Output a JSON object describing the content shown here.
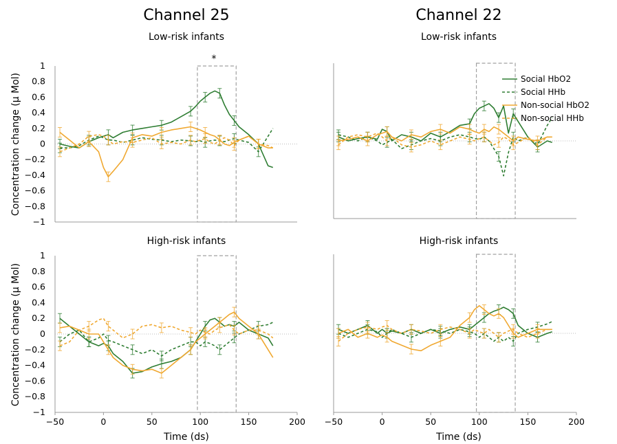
{
  "figure": {
    "ylabel": "Concentration change (μ Mol)",
    "xlabel": "Time (ds)",
    "columns": [
      "Channel 25",
      "Channel 22"
    ],
    "x_ticks": [
      "−50",
      "0",
      "50",
      "100",
      "150",
      "200"
    ],
    "y_ticks": [
      "1",
      "0.8",
      "0.6",
      "0.4",
      "0.2",
      "0",
      "−0.2",
      "−0.4",
      "−0.6",
      "−0.8",
      "−1"
    ],
    "significance_marker": "*",
    "colors": {
      "hbo2_social": "#2e7d32",
      "hhb_social": "#2e7d32",
      "hbo2_nonsocial": "#f0a830",
      "hhb_nonsocial": "#f0a830",
      "window": "#a0a0a0"
    }
  },
  "chart_data": [
    {
      "type": "line",
      "panel": "top-left",
      "channel": "Channel 25",
      "title": "Low-risk infants",
      "xlim": [
        -50,
        200
      ],
      "ylim": [
        -1,
        1
      ],
      "highlight_window": [
        97,
        137
      ],
      "significance": "*",
      "legend": {
        "placement": "top-right",
        "entries": [
          "Social HbO2",
          "Social HHb",
          "Non-social HbO2",
          "Non-social HHb"
        ]
      },
      "x": [
        -45,
        -35,
        -25,
        -15,
        -5,
        0,
        5,
        10,
        20,
        30,
        40,
        50,
        60,
        70,
        80,
        90,
        95,
        100,
        105,
        110,
        115,
        120,
        125,
        130,
        135,
        140,
        150,
        160,
        170,
        175
      ],
      "series": [
        {
          "name": "Social HbO2",
          "style": "solid",
          "values": [
            0.0,
            -0.03,
            -0.05,
            0.03,
            0.08,
            0.1,
            0.12,
            0.08,
            0.15,
            0.18,
            0.2,
            0.22,
            0.24,
            0.28,
            0.35,
            0.42,
            0.48,
            0.55,
            0.6,
            0.65,
            0.68,
            0.65,
            0.5,
            0.38,
            0.3,
            0.22,
            0.12,
            0.0,
            -0.28,
            -0.3
          ]
        },
        {
          "name": "Social HHb",
          "style": "dashed",
          "values": [
            -0.05,
            -0.05,
            -0.02,
            0.05,
            0.1,
            0.08,
            0.05,
            0.05,
            0.02,
            0.05,
            0.08,
            0.06,
            0.05,
            0.03,
            0.05,
            0.04,
            0.03,
            0.04,
            0.02,
            0.04,
            0.05,
            0.04,
            0.03,
            0.05,
            0.07,
            0.05,
            0.02,
            -0.1,
            0.1,
            0.2
          ]
        },
        {
          "name": "Non-social HbO2",
          "style": "solid",
          "values": [
            0.15,
            0.05,
            -0.05,
            0.03,
            -0.1,
            -0.3,
            -0.42,
            -0.35,
            -0.2,
            0.08,
            0.12,
            0.1,
            0.15,
            0.18,
            0.2,
            0.22,
            0.2,
            0.18,
            0.15,
            0.12,
            0.1,
            0.05,
            0.0,
            -0.02,
            0.02,
            0.05,
            0.1,
            0.0,
            -0.05,
            -0.05
          ]
        },
        {
          "name": "Non-social HHb",
          "style": "dashed",
          "values": [
            -0.1,
            -0.05,
            0.0,
            0.1,
            0.12,
            0.1,
            0.05,
            0.0,
            0.03,
            0.02,
            0.05,
            0.08,
            0.0,
            0.02,
            0.0,
            0.05,
            0.03,
            0.05,
            0.07,
            0.02,
            0.0,
            0.05,
            0.08,
            0.05,
            -0.02,
            0.05,
            0.1,
            0.0,
            -0.02,
            -0.05
          ]
        }
      ]
    },
    {
      "type": "line",
      "panel": "top-right",
      "channel": "Channel 22",
      "title": "Low-risk infants",
      "xlim": [
        -50,
        200
      ],
      "ylim": [
        -1,
        1
      ],
      "highlight_window": [
        97,
        137
      ],
      "x": [
        -45,
        -35,
        -25,
        -15,
        -5,
        0,
        5,
        10,
        20,
        30,
        40,
        50,
        60,
        70,
        80,
        90,
        95,
        100,
        105,
        110,
        115,
        120,
        125,
        130,
        135,
        140,
        150,
        160,
        170,
        175
      ],
      "series": [
        {
          "name": "Social HbO2",
          "style": "solid",
          "values": [
            0.05,
            0.0,
            0.03,
            0.05,
            0.02,
            0.15,
            0.12,
            0.0,
            0.08,
            0.05,
            0.0,
            0.1,
            0.05,
            0.12,
            0.2,
            0.22,
            0.35,
            0.42,
            0.45,
            0.48,
            0.42,
            0.3,
            0.45,
            0.1,
            0.35,
            0.25,
            0.05,
            -0.08,
            0.0,
            -0.02
          ]
        },
        {
          "name": "Social HHb",
          "style": "dashed",
          "values": [
            0.08,
            0.05,
            0.0,
            0.05,
            0.0,
            -0.05,
            -0.02,
            0.02,
            -0.1,
            -0.05,
            0.0,
            0.03,
            0.0,
            0.05,
            0.08,
            0.05,
            0.03,
            0.02,
            0.05,
            0.0,
            -0.1,
            -0.2,
            -0.45,
            -0.15,
            0.05,
            0.0,
            0.05,
            -0.05,
            0.2,
            0.3
          ]
        },
        {
          "name": "Non-social HbO2",
          "style": "solid",
          "values": [
            0.0,
            0.02,
            0.05,
            0.0,
            0.08,
            0.1,
            0.12,
            0.05,
            0.0,
            0.08,
            0.05,
            0.12,
            0.15,
            0.1,
            0.18,
            0.15,
            0.12,
            0.1,
            0.15,
            0.12,
            0.18,
            0.15,
            0.1,
            0.05,
            0.0,
            0.05,
            0.02,
            0.0,
            0.05,
            0.05
          ]
        },
        {
          "name": "Non-social HHb",
          "style": "dashed",
          "values": [
            -0.05,
            0.05,
            0.08,
            0.05,
            0.1,
            0.05,
            0.0,
            0.05,
            -0.05,
            -0.08,
            -0.05,
            0.0,
            -0.05,
            0.0,
            0.05,
            0.02,
            0.0,
            0.03,
            0.05,
            0.0,
            -0.05,
            -0.02,
            0.05,
            0.02,
            -0.05,
            -0.02,
            0.05,
            -0.05,
            0.05,
            0.05
          ]
        }
      ]
    },
    {
      "type": "line",
      "panel": "bottom-left",
      "channel": "Channel 25",
      "title": "High-risk infants",
      "xlim": [
        -50,
        200
      ],
      "ylim": [
        -1,
        1
      ],
      "highlight_window": [
        97,
        137
      ],
      "x": [
        -45,
        -35,
        -25,
        -15,
        -5,
        0,
        5,
        10,
        20,
        30,
        40,
        50,
        60,
        70,
        80,
        90,
        95,
        100,
        105,
        110,
        115,
        120,
        125,
        130,
        135,
        140,
        150,
        160,
        170,
        175
      ],
      "series": [
        {
          "name": "Social HbO2",
          "style": "solid",
          "values": [
            0.2,
            0.1,
            0.0,
            -0.1,
            -0.15,
            -0.12,
            -0.15,
            -0.25,
            -0.35,
            -0.5,
            -0.48,
            -0.42,
            -0.38,
            -0.35,
            -0.3,
            -0.2,
            -0.1,
            0.0,
            0.1,
            0.18,
            0.2,
            0.15,
            0.1,
            0.12,
            0.1,
            0.15,
            0.05,
            0.0,
            -0.05,
            -0.15
          ]
        },
        {
          "name": "Social HHb",
          "style": "dashed",
          "values": [
            -0.1,
            0.0,
            0.05,
            -0.1,
            -0.05,
            0.0,
            -0.08,
            -0.1,
            -0.15,
            -0.2,
            -0.25,
            -0.2,
            -0.28,
            -0.2,
            -0.15,
            -0.1,
            -0.1,
            -0.15,
            -0.1,
            -0.12,
            -0.15,
            -0.2,
            -0.15,
            -0.1,
            -0.05,
            0.0,
            0.05,
            0.1,
            0.12,
            0.15
          ]
        },
        {
          "name": "Non-social HbO2",
          "style": "solid",
          "values": [
            0.08,
            0.1,
            0.05,
            0.0,
            0.0,
            -0.1,
            -0.2,
            -0.3,
            -0.4,
            -0.45,
            -0.47,
            -0.45,
            -0.5,
            -0.4,
            -0.3,
            -0.2,
            -0.1,
            -0.05,
            0.0,
            0.05,
            0.1,
            0.15,
            0.2,
            0.25,
            0.28,
            0.2,
            0.1,
            0.0,
            -0.2,
            -0.3
          ]
        },
        {
          "name": "Non-social HHb",
          "style": "dashed",
          "values": [
            -0.15,
            -0.1,
            0.05,
            0.1,
            0.18,
            0.2,
            0.1,
            0.05,
            -0.05,
            0.0,
            0.1,
            0.12,
            0.08,
            0.1,
            0.05,
            0.02,
            0.0,
            0.05,
            0.02,
            0.0,
            0.05,
            0.08,
            0.1,
            0.12,
            0.05,
            0.0,
            0.05,
            0.05,
            0.0,
            -0.05
          ]
        }
      ]
    },
    {
      "type": "line",
      "panel": "bottom-right",
      "channel": "Channel 22",
      "title": "High-risk infants",
      "xlim": [
        -50,
        200
      ],
      "ylim": [
        -1,
        1
      ],
      "highlight_window": [
        97,
        137
      ],
      "x": [
        -45,
        -35,
        -25,
        -15,
        -5,
        0,
        5,
        10,
        20,
        30,
        40,
        50,
        60,
        70,
        80,
        90,
        95,
        100,
        105,
        110,
        115,
        120,
        125,
        130,
        135,
        140,
        150,
        160,
        170,
        175
      ],
      "series": [
        {
          "name": "Social HbO2",
          "style": "solid",
          "values": [
            0.05,
            0.0,
            0.05,
            0.1,
            0.0,
            0.05,
            0.0,
            0.03,
            0.0,
            0.05,
            0.0,
            0.05,
            0.0,
            0.05,
            0.08,
            0.05,
            0.1,
            0.15,
            0.2,
            0.25,
            0.28,
            0.3,
            0.33,
            0.3,
            0.25,
            0.1,
            0.0,
            -0.05,
            0.0,
            0.02
          ]
        },
        {
          "name": "Social HHb",
          "style": "dashed",
          "values": [
            0.0,
            -0.05,
            0.0,
            0.05,
            0.02,
            -0.05,
            0.0,
            0.05,
            0.0,
            -0.05,
            0.0,
            0.05,
            0.03,
            0.0,
            0.05,
            0.02,
            0.0,
            -0.05,
            0.0,
            -0.05,
            -0.1,
            -0.05,
            -0.1,
            -0.05,
            -0.1,
            0.0,
            0.05,
            0.08,
            0.12,
            0.15
          ]
        },
        {
          "name": "Non-social HbO2",
          "style": "solid",
          "values": [
            0.0,
            0.05,
            -0.05,
            0.0,
            -0.05,
            -0.02,
            -0.05,
            -0.1,
            -0.15,
            -0.2,
            -0.22,
            -0.15,
            -0.1,
            -0.05,
            0.1,
            0.2,
            0.3,
            0.35,
            0.3,
            0.25,
            0.22,
            0.25,
            0.2,
            0.1,
            0.0,
            -0.05,
            0.0,
            0.05,
            0.05,
            0.05
          ]
        },
        {
          "name": "Non-social HHb",
          "style": "dashed",
          "values": [
            -0.1,
            0.0,
            0.05,
            0.08,
            0.05,
            0.08,
            0.1,
            0.05,
            0.0,
            0.05,
            0.03,
            0.0,
            0.05,
            0.08,
            0.05,
            0.0,
            0.05,
            0.02,
            0.0,
            0.05,
            0.0,
            -0.05,
            0.0,
            0.03,
            0.05,
            0.0,
            -0.05,
            0.0,
            0.05,
            0.05
          ]
        }
      ]
    }
  ]
}
